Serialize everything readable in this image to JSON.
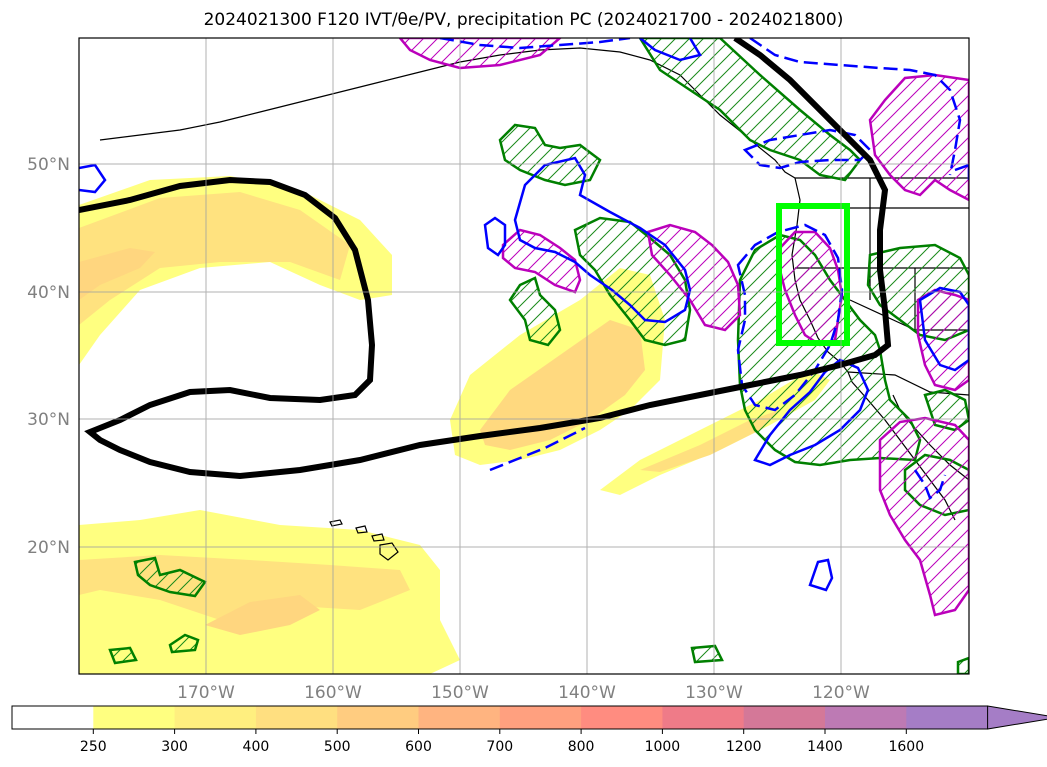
{
  "title": "2024021300 F120 IVT/θe/PV, precipitation PC (2024021700 - 2024021800)",
  "map": {
    "lat_range": [
      10,
      60
    ],
    "lon_range": [
      -180,
      -110
    ],
    "lat_labels": [
      "50°N",
      "40°N",
      "30°N",
      "20°N"
    ],
    "lon_labels": [
      "170°W",
      "160°W",
      "150°W",
      "140°W",
      "130°W",
      "120°W"
    ],
    "highlight_box": {
      "lon": [
        -125,
        -120
      ],
      "lat": [
        36,
        47
      ],
      "color": "#00ff00"
    }
  },
  "colorbar": {
    "ticks": [
      "250",
      "300",
      "400",
      "500",
      "600",
      "700",
      "800",
      "1000",
      "1200",
      "1400",
      "1600"
    ],
    "colors": [
      "#ffffff",
      "#ffff80",
      "#ffef7f",
      "#ffdf80",
      "#ffcc80",
      "#ffb480",
      "#ffa07f",
      "#ff8c80",
      "#ef7b88",
      "#d47898",
      "#bd7ab4",
      "#a57dc6"
    ]
  },
  "legend_colors": {
    "theta_e": "#000000",
    "pv_solid": "#0000ff",
    "pc_green": "#008000",
    "pc_magenta": "#bb00bb",
    "ivt": "#ffff80"
  }
}
